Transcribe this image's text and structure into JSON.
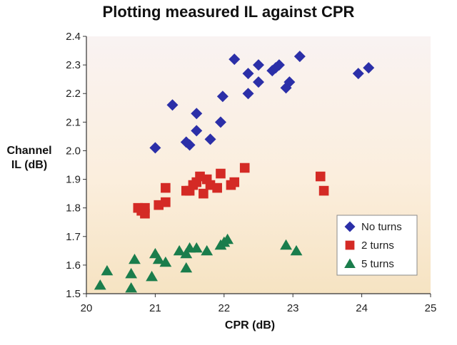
{
  "chart_data": {
    "type": "scatter",
    "title": "Plotting measured IL against CPR",
    "xlabel": "CPR (dB)",
    "ylabel_lines": [
      "Channel",
      "IL (dB)"
    ],
    "xlim": [
      20,
      25
    ],
    "ylim": [
      1.5,
      2.4
    ],
    "x_ticks": [
      "20",
      "21",
      "22",
      "23",
      "24",
      "25"
    ],
    "y_ticks": [
      "1.5",
      "1.6",
      "1.7",
      "1.8",
      "1.9",
      "2.0",
      "2.1",
      "2.2",
      "2.3",
      "2.4"
    ],
    "grid": false,
    "legend_position": "bottom-right",
    "series": [
      {
        "name": "No turns",
        "marker": "diamond",
        "color": "#2b2fa8",
        "points": [
          [
            21.0,
            2.01
          ],
          [
            21.25,
            2.16
          ],
          [
            21.45,
            2.03
          ],
          [
            21.5,
            2.02
          ],
          [
            21.6,
            2.07
          ],
          [
            21.6,
            2.13
          ],
          [
            21.8,
            2.04
          ],
          [
            21.95,
            2.1
          ],
          [
            21.98,
            2.19
          ],
          [
            22.15,
            2.32
          ],
          [
            22.35,
            2.2
          ],
          [
            22.35,
            2.27
          ],
          [
            22.5,
            2.24
          ],
          [
            22.5,
            2.3
          ],
          [
            22.7,
            2.28
          ],
          [
            22.75,
            2.29
          ],
          [
            22.8,
            2.3
          ],
          [
            22.9,
            2.22
          ],
          [
            22.95,
            2.24
          ],
          [
            23.1,
            2.33
          ],
          [
            23.95,
            2.27
          ],
          [
            24.1,
            2.29
          ]
        ]
      },
      {
        "name": "2 turns",
        "marker": "square",
        "color": "#d42a25",
        "points": [
          [
            20.75,
            1.8
          ],
          [
            20.8,
            1.79
          ],
          [
            20.85,
            1.78
          ],
          [
            20.85,
            1.8
          ],
          [
            21.05,
            1.81
          ],
          [
            21.15,
            1.82
          ],
          [
            21.15,
            1.87
          ],
          [
            21.45,
            1.86
          ],
          [
            21.5,
            1.86
          ],
          [
            21.55,
            1.88
          ],
          [
            21.6,
            1.89
          ],
          [
            21.65,
            1.91
          ],
          [
            21.7,
            1.85
          ],
          [
            21.75,
            1.9
          ],
          [
            21.8,
            1.88
          ],
          [
            21.9,
            1.87
          ],
          [
            21.95,
            1.92
          ],
          [
            22.1,
            1.88
          ],
          [
            22.15,
            1.89
          ],
          [
            22.3,
            1.94
          ],
          [
            23.4,
            1.91
          ],
          [
            23.45,
            1.86
          ]
        ]
      },
      {
        "name": "5 turns",
        "marker": "triangle",
        "color": "#1a7d4c",
        "points": [
          [
            20.2,
            1.53
          ],
          [
            20.3,
            1.58
          ],
          [
            20.65,
            1.57
          ],
          [
            20.65,
            1.52
          ],
          [
            20.7,
            1.62
          ],
          [
            20.95,
            1.56
          ],
          [
            21.0,
            1.64
          ],
          [
            21.05,
            1.62
          ],
          [
            21.15,
            1.61
          ],
          [
            21.35,
            1.65
          ],
          [
            21.45,
            1.59
          ],
          [
            21.45,
            1.64
          ],
          [
            21.5,
            1.66
          ],
          [
            21.6,
            1.66
          ],
          [
            21.75,
            1.65
          ],
          [
            21.95,
            1.67
          ],
          [
            22.0,
            1.68
          ],
          [
            22.05,
            1.69
          ],
          [
            22.9,
            1.67
          ],
          [
            23.05,
            1.65
          ]
        ]
      }
    ]
  }
}
